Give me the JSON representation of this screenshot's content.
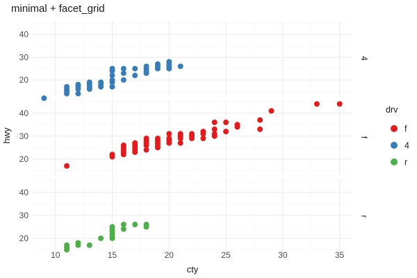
{
  "chart_data": {
    "type": "scatter",
    "title": "minimal + facet_grid",
    "xlabel": "cty",
    "ylabel": "hwy",
    "xlim": [
      8,
      36
    ],
    "ylim": [
      13,
      46
    ],
    "x_ticks": [
      10,
      15,
      20,
      25,
      30,
      35
    ],
    "y_ticks": [
      20,
      30,
      40
    ],
    "grid": true,
    "legend": {
      "title": "drv",
      "placement": "right",
      "entries": [
        {
          "label": "f",
          "color": "#E41A1C"
        },
        {
          "label": "4",
          "color": "#377EB8"
        },
        {
          "label": "r",
          "color": "#4DAF4A"
        }
      ]
    },
    "facets": [
      {
        "label": "4",
        "color": "#377EB8",
        "points": [
          [
            9,
            12
          ],
          [
            11,
            14
          ],
          [
            11,
            15
          ],
          [
            11,
            16
          ],
          [
            11,
            17
          ],
          [
            12,
            14
          ],
          [
            12,
            16
          ],
          [
            12,
            17
          ],
          [
            12,
            18
          ],
          [
            13,
            16
          ],
          [
            13,
            17
          ],
          [
            13,
            18
          ],
          [
            13,
            19
          ],
          [
            14,
            17
          ],
          [
            14,
            18
          ],
          [
            14,
            19
          ],
          [
            15,
            17
          ],
          [
            15,
            19
          ],
          [
            15,
            20
          ],
          [
            15,
            22
          ],
          [
            15,
            24
          ],
          [
            15,
            25
          ],
          [
            16,
            20
          ],
          [
            16,
            23
          ],
          [
            16,
            25
          ],
          [
            17,
            22
          ],
          [
            17,
            25
          ],
          [
            18,
            23
          ],
          [
            18,
            24
          ],
          [
            18,
            25
          ],
          [
            18,
            26
          ],
          [
            19,
            25
          ],
          [
            19,
            26
          ],
          [
            19,
            27
          ],
          [
            20,
            25
          ],
          [
            20,
            26
          ],
          [
            20,
            27
          ],
          [
            20,
            28
          ],
          [
            21,
            26
          ]
        ]
      },
      {
        "label": "f",
        "color": "#E41A1C",
        "points": [
          [
            11,
            17
          ],
          [
            15,
            21
          ],
          [
            15,
            22
          ],
          [
            16,
            22
          ],
          [
            16,
            23
          ],
          [
            16,
            24
          ],
          [
            16,
            25
          ],
          [
            16,
            26
          ],
          [
            17,
            23
          ],
          [
            17,
            24
          ],
          [
            17,
            25
          ],
          [
            17,
            26
          ],
          [
            17,
            27
          ],
          [
            18,
            24
          ],
          [
            18,
            26
          ],
          [
            18,
            27
          ],
          [
            18,
            28
          ],
          [
            18,
            29
          ],
          [
            19,
            25
          ],
          [
            19,
            26
          ],
          [
            19,
            27
          ],
          [
            19,
            28
          ],
          [
            19,
            29
          ],
          [
            20,
            27
          ],
          [
            20,
            28
          ],
          [
            20,
            29
          ],
          [
            20,
            31
          ],
          [
            21,
            27
          ],
          [
            21,
            29
          ],
          [
            21,
            30
          ],
          [
            21,
            31
          ],
          [
            22,
            29
          ],
          [
            22,
            30
          ],
          [
            22,
            31
          ],
          [
            23,
            29
          ],
          [
            23,
            31
          ],
          [
            23,
            32
          ],
          [
            24,
            30
          ],
          [
            24,
            31
          ],
          [
            24,
            33
          ],
          [
            24,
            36
          ],
          [
            25,
            32
          ],
          [
            25,
            36
          ],
          [
            26,
            34
          ],
          [
            26,
            35
          ],
          [
            28,
            33
          ],
          [
            28,
            37
          ],
          [
            29,
            41
          ],
          [
            33,
            44
          ],
          [
            35,
            44
          ]
        ]
      },
      {
        "label": "r",
        "color": "#4DAF4A",
        "points": [
          [
            11,
            15
          ],
          [
            11,
            16
          ],
          [
            11,
            17
          ],
          [
            12,
            17
          ],
          [
            12,
            18
          ],
          [
            13,
            17
          ],
          [
            14,
            20
          ],
          [
            15,
            20
          ],
          [
            15,
            21
          ],
          [
            15,
            22
          ],
          [
            15,
            23
          ],
          [
            15,
            24
          ],
          [
            15,
            25
          ],
          [
            16,
            24
          ],
          [
            16,
            26
          ],
          [
            17,
            26
          ],
          [
            18,
            25
          ],
          [
            18,
            26
          ]
        ]
      }
    ]
  }
}
